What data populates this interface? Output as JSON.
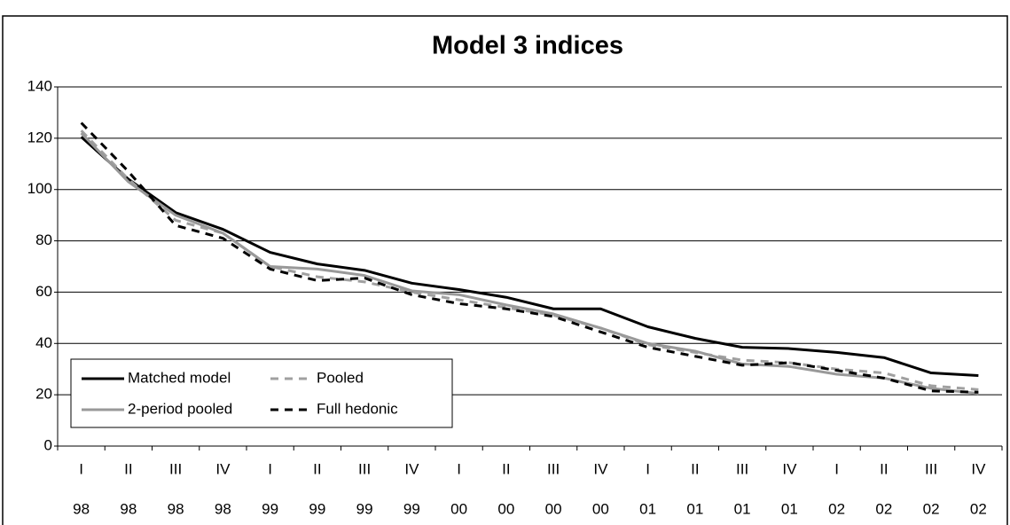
{
  "chart_data": {
    "type": "line",
    "title": "Model 3 indices",
    "categories": [
      [
        "I",
        "98"
      ],
      [
        "II",
        "98"
      ],
      [
        "III",
        "98"
      ],
      [
        "IV",
        "98"
      ],
      [
        "I",
        "99"
      ],
      [
        "II",
        "99"
      ],
      [
        "III",
        "99"
      ],
      [
        "IV",
        "99"
      ],
      [
        "I",
        "00"
      ],
      [
        "II",
        "00"
      ],
      [
        "III",
        "00"
      ],
      [
        "IV",
        "00"
      ],
      [
        "I",
        "01"
      ],
      [
        "II",
        "01"
      ],
      [
        "III",
        "01"
      ],
      [
        "IV",
        "01"
      ],
      [
        "I",
        "02"
      ],
      [
        "II",
        "02"
      ],
      [
        "III",
        "02"
      ],
      [
        "IV",
        "02"
      ]
    ],
    "series": [
      {
        "name": "Matched model",
        "color": "#000000",
        "style": "solid",
        "values": [
          120.5,
          104,
          91,
          84.5,
          75.5,
          71,
          68.5,
          63.5,
          61,
          58,
          53.5,
          53.5,
          46.5,
          42,
          38.5,
          38,
          36.5,
          34.5,
          28.5,
          27.5
        ]
      },
      {
        "name": "Pooled",
        "color": "#a0a0a0",
        "style": "dashed",
        "values": [
          123,
          104,
          88,
          83,
          70,
          66,
          64,
          60,
          57,
          54,
          51,
          46,
          39.5,
          36.5,
          33.5,
          32.5,
          30,
          28.5,
          23.5,
          22
        ]
      },
      {
        "name": "2-period pooled",
        "color": "#999999",
        "style": "solid",
        "values": [
          122,
          103,
          90,
          83,
          70,
          69,
          66.5,
          60.5,
          59,
          55,
          51.5,
          46,
          40,
          37,
          32,
          31,
          28,
          26.5,
          22.5,
          20.5
        ]
      },
      {
        "name": "Full hedonic",
        "color": "#000000",
        "style": "dashed",
        "values": [
          126,
          107,
          86,
          81,
          69,
          64.5,
          65.5,
          59,
          55.5,
          53.5,
          50.5,
          44.5,
          38.5,
          35,
          31.5,
          32.5,
          29.5,
          26.5,
          21.5,
          21
        ]
      }
    ],
    "ylim": [
      0,
      140
    ],
    "yticks": [
      0,
      20,
      40,
      60,
      80,
      100,
      120,
      140
    ],
    "grid": true,
    "legend": "bottom-left"
  }
}
